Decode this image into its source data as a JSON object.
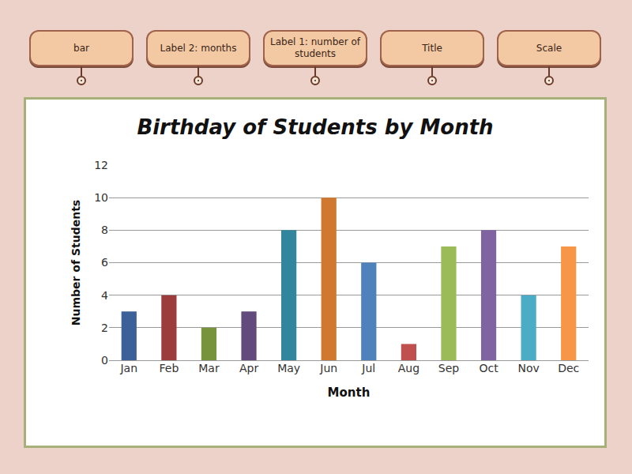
{
  "tags": [
    "bar",
    "Label 2: months",
    "Label 1: number of students",
    "Title",
    "Scale"
  ],
  "chart_data": {
    "type": "bar",
    "title": "Birthday of Students by Month",
    "x_label": "Month",
    "y_label": "Number of Students",
    "categories": [
      "Jan",
      "Feb",
      "Mar",
      "Apr",
      "May",
      "Jun",
      "Jul",
      "Aug",
      "Sep",
      "Oct",
      "Nov",
      "Dec"
    ],
    "values": [
      3,
      4,
      2,
      3,
      8,
      10,
      6,
      1,
      7,
      8,
      4,
      7
    ],
    "colors": [
      "#3b6198",
      "#9b3d3d",
      "#77933c",
      "#624a7d",
      "#31859c",
      "#d0782f",
      "#4f81bd",
      "#c0504d",
      "#9bbb59",
      "#8064a2",
      "#4bacc6",
      "#f79646"
    ],
    "ylim": [
      0,
      12
    ],
    "yticks": [
      0,
      2,
      4,
      6,
      8,
      10,
      12
    ],
    "grid": true
  }
}
